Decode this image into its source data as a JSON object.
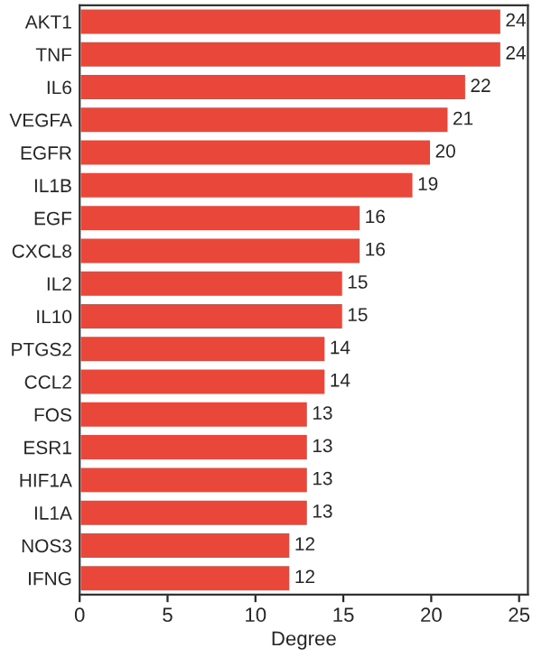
{
  "chart_data": {
    "type": "bar",
    "orientation": "horizontal",
    "xlabel": "Degree",
    "categories": [
      "AKT1",
      "TNF",
      "IL6",
      "VEGFA",
      "EGFR",
      "IL1B",
      "EGF",
      "CXCL8",
      "IL2",
      "IL10",
      "PTGS2",
      "CCL2",
      "FOS",
      "ESR1",
      "HIF1A",
      "IL1A",
      "NOS3",
      "IFNG"
    ],
    "values": [
      24,
      24,
      22,
      21,
      20,
      19,
      16,
      16,
      15,
      15,
      14,
      14,
      13,
      13,
      13,
      13,
      12,
      12
    ],
    "color": "#e8473a",
    "data_labels": true,
    "xlim": [
      0,
      25.5
    ],
    "xticks": [
      0,
      5,
      10,
      15,
      20,
      25
    ],
    "grid": false,
    "legend": false
  }
}
